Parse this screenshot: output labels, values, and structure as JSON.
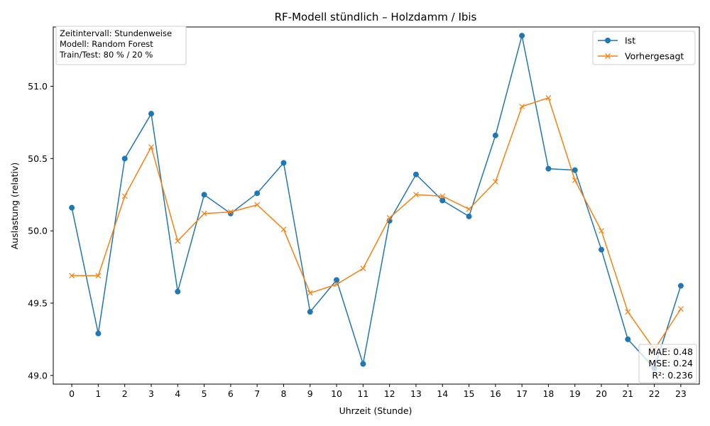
{
  "chart_data": {
    "type": "line",
    "title": "RF-Modell stündlich – Holzdamm / Ibis",
    "xlabel": "Uhrzeit (Stunde)",
    "ylabel": "Auslastung (relativ)",
    "x": [
      0,
      1,
      2,
      3,
      4,
      5,
      6,
      7,
      8,
      9,
      10,
      11,
      12,
      13,
      14,
      15,
      16,
      17,
      18,
      19,
      20,
      21,
      22,
      23
    ],
    "x_tick_labels": [
      "0",
      "1",
      "2",
      "3",
      "4",
      "5",
      "6",
      "7",
      "8",
      "9",
      "10",
      "11",
      "12",
      "13",
      "14",
      "15",
      "16",
      "17",
      "18",
      "19",
      "20",
      "21",
      "22",
      "23"
    ],
    "xlim": [
      -0.7,
      23.7
    ],
    "ylim": [
      48.94,
      51.41
    ],
    "y_ticks": [
      49.0,
      49.5,
      50.0,
      50.5,
      51.0
    ],
    "y_tick_labels": [
      "49.0",
      "49.5",
      "50.0",
      "50.5",
      "51.0"
    ],
    "grid": false,
    "legend_position": "top-right",
    "series": [
      {
        "name": "Ist",
        "color": "#1f77b4",
        "marker": "circle",
        "values": [
          50.16,
          49.29,
          50.5,
          50.81,
          49.58,
          50.25,
          50.12,
          50.26,
          50.47,
          49.44,
          49.66,
          49.08,
          50.07,
          50.39,
          50.21,
          50.1,
          50.66,
          51.35,
          50.43,
          50.42,
          49.87,
          49.25,
          49.05,
          49.62
        ]
      },
      {
        "name": "Vorhergesagt",
        "color": "#ff7f0e",
        "marker": "x",
        "values": [
          49.69,
          49.69,
          50.24,
          50.58,
          49.93,
          50.12,
          50.13,
          50.18,
          50.01,
          49.57,
          49.63,
          49.74,
          50.09,
          50.25,
          50.24,
          50.15,
          50.34,
          50.86,
          50.92,
          50.35,
          50.0,
          49.44,
          49.18,
          49.46
        ]
      }
    ],
    "info_box": [
      "Zeitintervall: Stundenweise",
      "Modell: Random Forest",
      "Train/Test: 80 % / 20 %"
    ],
    "metrics_box": [
      "MAE: 0.48",
      "MSE: 0.24",
      "R²: 0.236"
    ]
  }
}
